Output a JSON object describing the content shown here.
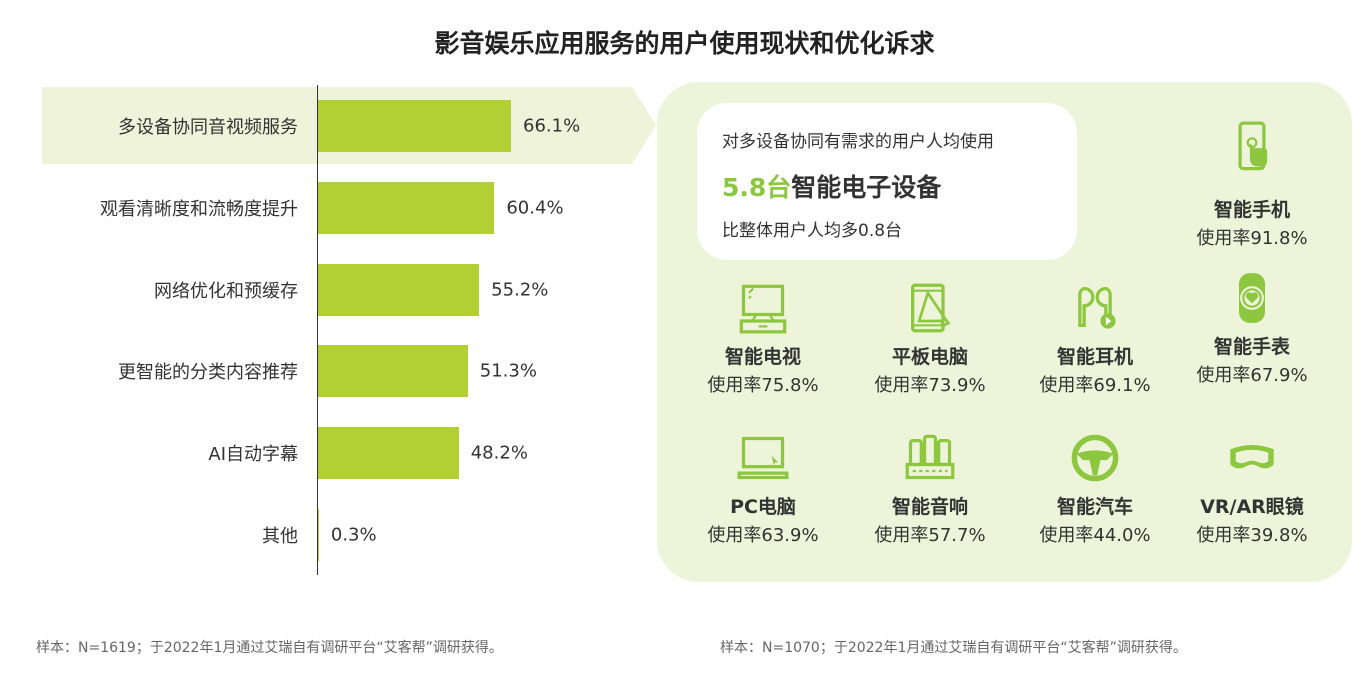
{
  "title": "影音娱乐应用服务的用户使用现状和优化诉求",
  "chart_data": {
    "type": "bar",
    "orientation": "horizontal",
    "title": "影音娱乐应用服务的用户使用现状和优化诉求",
    "categories": [
      "多设备协同音视频服务",
      "观看清晰度和流畅度提升",
      "网络优化和预缓存",
      "更智能的分类内容推荐",
      "AI自动字幕",
      "其他"
    ],
    "values": [
      66.1,
      60.4,
      55.2,
      51.3,
      48.2,
      0.3
    ],
    "value_labels": [
      "66.1%",
      "60.4%",
      "55.2%",
      "51.3%",
      "48.2%",
      "0.3%"
    ],
    "highlighted": "多设备协同音视频服务",
    "color": "#b2cf33"
  },
  "summary": {
    "line1": "对多设备协同有需求的用户人均使用",
    "num": "5.8台",
    "line2": "智能电子设备",
    "line3": "比整体用户人均多0.8台"
  },
  "devices": [
    {
      "name": "智能手机",
      "rate": "使用率91.8%",
      "icon": "smartphone-icon"
    },
    {
      "name": "智能电视",
      "rate": "使用率75.8%",
      "icon": "tv-icon"
    },
    {
      "name": "平板电脑",
      "rate": "使用率73.9%",
      "icon": "tablet-icon"
    },
    {
      "name": "智能耳机",
      "rate": "使用率69.1%",
      "icon": "earbuds-icon"
    },
    {
      "name": "智能手表",
      "rate": "使用率67.9%",
      "icon": "smartwatch-icon"
    },
    {
      "name": "PC电脑",
      "rate": "使用率63.9%",
      "icon": "laptop-icon"
    },
    {
      "name": "智能音响",
      "rate": "使用率57.7%",
      "icon": "speaker-icon"
    },
    {
      "name": "智能汽车",
      "rate": "使用率44.0%",
      "icon": "steering-wheel-icon"
    },
    {
      "name": "VR/AR眼镜",
      "rate": "使用率39.8%",
      "icon": "vr-glasses-icon"
    }
  ],
  "footnotes": {
    "left": "样本：N=1619；于2022年1月通过艾瑞自有调研平台“艾客帮”调研获得。",
    "right": "样本：N=1070；于2022年1月通过艾瑞自有调研平台“艾客帮”调研获得。"
  },
  "colors": {
    "bar": "#b2cf33",
    "accent": "#8dc63f",
    "panel": "#eef4d9"
  }
}
